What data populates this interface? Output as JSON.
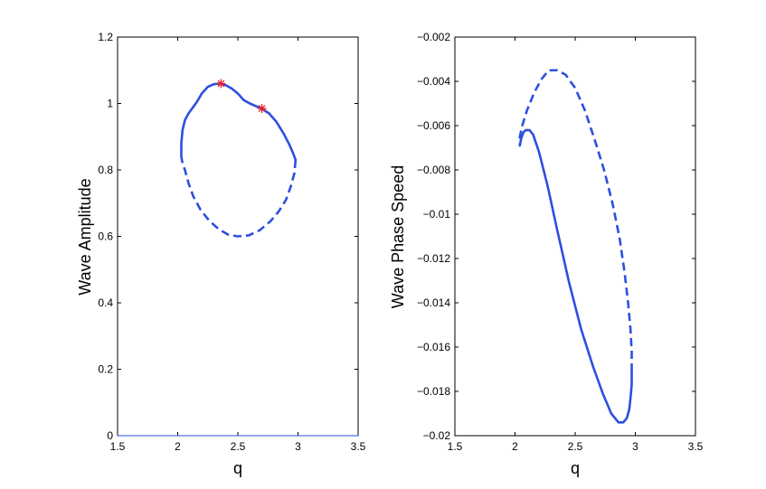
{
  "chart_data": [
    {
      "type": "line",
      "title": "",
      "xlabel": "q",
      "ylabel": "Wave Amplitude",
      "xlim": [
        1.5,
        3.5
      ],
      "ylim": [
        0,
        1.2
      ],
      "xticks": [
        "1.5",
        "2",
        "2.5",
        "3",
        "3.5"
      ],
      "yticks": [
        "0",
        "0.2",
        "0.4",
        "0.6",
        "0.8",
        "1",
        "1.2"
      ],
      "grid": false,
      "colors": {
        "line": "#2d4fe0",
        "marker": "#e8202a"
      },
      "series": [
        {
          "style": "solid",
          "x": [
            2.03,
            2.03,
            2.04,
            2.06,
            2.09,
            2.12,
            2.16,
            2.2,
            2.25,
            2.3,
            2.35,
            2.4,
            2.45,
            2.5,
            2.55,
            2.6,
            2.65,
            2.7,
            2.76,
            2.82,
            2.88,
            2.93,
            2.96,
            2.98
          ],
          "y": [
            0.84,
            0.88,
            0.92,
            0.95,
            0.97,
            0.985,
            1.005,
            1.03,
            1.05,
            1.058,
            1.06,
            1.055,
            1.045,
            1.03,
            1.01,
            1.0,
            0.992,
            0.984,
            0.97,
            0.945,
            0.91,
            0.875,
            0.85,
            0.83
          ]
        },
        {
          "style": "dashed",
          "x": [
            2.98,
            2.97,
            2.94,
            2.9,
            2.84,
            2.77,
            2.68,
            2.59,
            2.5,
            2.42,
            2.34,
            2.26,
            2.19,
            2.13,
            2.09,
            2.06,
            2.04,
            2.03
          ],
          "y": [
            0.83,
            0.79,
            0.75,
            0.71,
            0.675,
            0.645,
            0.618,
            0.603,
            0.6,
            0.605,
            0.622,
            0.648,
            0.68,
            0.72,
            0.76,
            0.8,
            0.82,
            0.84
          ]
        },
        {
          "style": "thin",
          "x": [
            1.5,
            3.5
          ],
          "y": [
            0,
            0
          ]
        }
      ],
      "markers": [
        {
          "x": 2.36,
          "y": 1.06
        },
        {
          "x": 2.7,
          "y": 0.985
        }
      ]
    },
    {
      "type": "line",
      "title": "",
      "xlabel": "q",
      "ylabel": "Wave Phase Speed",
      "xlim": [
        1.5,
        3.5
      ],
      "ylim": [
        -0.02,
        -0.002
      ],
      "xticks": [
        "1.5",
        "2",
        "2.5",
        "3",
        "3.5"
      ],
      "yticks": [
        "-0.02",
        "-0.018",
        "-0.016",
        "-0.014",
        "-0.012",
        "-0.01",
        "-0.008",
        "-0.006",
        "-0.004",
        "-0.002"
      ],
      "grid": false,
      "colors": {
        "line": "#2d4fe0"
      },
      "series": [
        {
          "style": "solid",
          "x": [
            2.04,
            2.05,
            2.07,
            2.09,
            2.12,
            2.15,
            2.2,
            2.27,
            2.35,
            2.45,
            2.55,
            2.65,
            2.73,
            2.8,
            2.86,
            2.9,
            2.93,
            2.95,
            2.96,
            2.97,
            2.97
          ],
          "y": [
            -0.0069,
            -0.0066,
            -0.0063,
            -0.0062,
            -0.0062,
            -0.0064,
            -0.0072,
            -0.0087,
            -0.0107,
            -0.0131,
            -0.0152,
            -0.0169,
            -0.0181,
            -0.019,
            -0.0194,
            -0.0194,
            -0.0192,
            -0.0188,
            -0.0183,
            -0.0177,
            -0.0171
          ]
        },
        {
          "style": "dashed",
          "x": [
            2.97,
            2.97,
            2.96,
            2.94,
            2.91,
            2.87,
            2.81,
            2.74,
            2.66,
            2.58,
            2.5,
            2.42,
            2.35,
            2.28,
            2.22,
            2.16,
            2.1,
            2.06,
            2.04,
            2.04
          ],
          "y": [
            -0.0171,
            -0.0162,
            -0.0152,
            -0.014,
            -0.0126,
            -0.0111,
            -0.0095,
            -0.008,
            -0.0066,
            -0.0053,
            -0.0043,
            -0.0037,
            -0.0035,
            -0.0035,
            -0.0039,
            -0.0045,
            -0.0053,
            -0.006,
            -0.0065,
            -0.0069
          ]
        }
      ]
    }
  ]
}
